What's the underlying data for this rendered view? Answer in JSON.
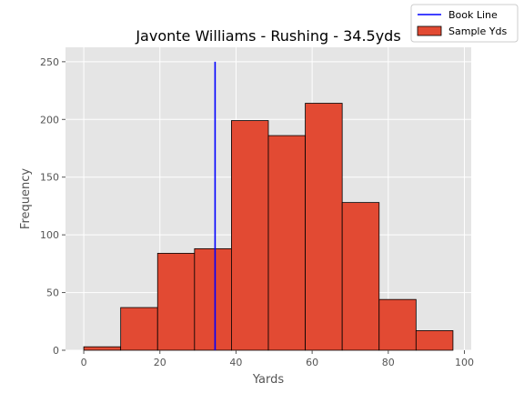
{
  "chart_data": {
    "type": "bar",
    "title": "Javonte Williams - Rushing - 34.5yds",
    "xlabel": "Yards",
    "ylabel": "Frequency",
    "xlim": [
      -4.8,
      101.8
    ],
    "ylim": [
      0,
      262.5
    ],
    "xticks": [
      0,
      20,
      40,
      60,
      80,
      100
    ],
    "yticks": [
      0,
      50,
      100,
      150,
      200,
      250
    ],
    "grid": true,
    "legend_position": "top-right",
    "histogram": {
      "bin_edges": [
        0.0,
        9.7,
        19.4,
        29.1,
        38.8,
        48.5,
        58.2,
        67.9,
        77.6,
        87.3,
        97.0
      ],
      "counts": [
        3,
        37,
        84,
        88,
        199,
        186,
        214,
        128,
        44,
        17
      ],
      "name": "Sample Yds",
      "color": "#e24a33",
      "edge_color": "#000000"
    },
    "reference_line": {
      "name": "Book Line",
      "x": 34.5,
      "y_range": [
        0,
        250
      ],
      "color": "#0000ff"
    },
    "style": {
      "plot_background": "#e5e5e5",
      "grid_color": "#ffffff"
    }
  }
}
